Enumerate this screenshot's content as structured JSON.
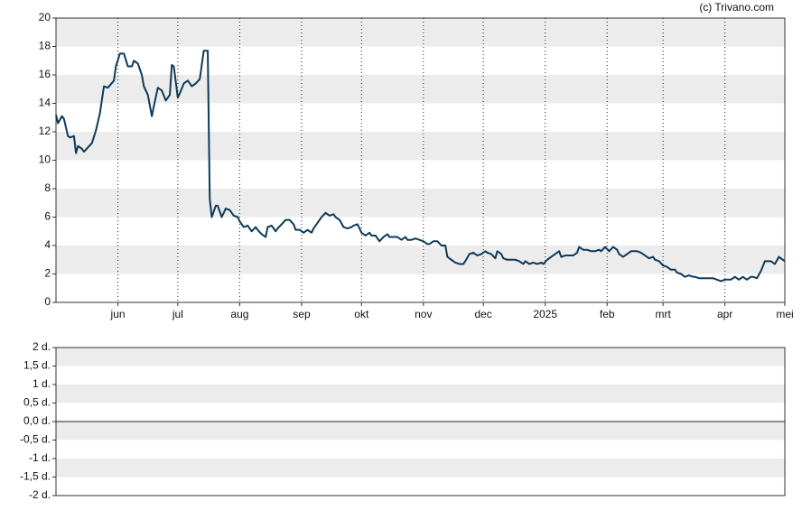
{
  "watermark": "(c) Trivano.com",
  "chart_data": [
    {
      "type": "line",
      "x": [
        0,
        1,
        3,
        4,
        6,
        7,
        9,
        10,
        11,
        13,
        14,
        16,
        18,
        20,
        22,
        24,
        26,
        29,
        30,
        32,
        34,
        36,
        38,
        39,
        41,
        43,
        44,
        46,
        48,
        49,
        51,
        53,
        55,
        57,
        58,
        59,
        61,
        62,
        64,
        66,
        68,
        70,
        72,
        74,
        76,
        77,
        78,
        80,
        81,
        83,
        85,
        87,
        89,
        91,
        92,
        94,
        96,
        98,
        100,
        101,
        103,
        105,
        106,
        108,
        110,
        111,
        113,
        115,
        117,
        119,
        120,
        122,
        124,
        126,
        128,
        129,
        131,
        133,
        135,
        137,
        139,
        140,
        142,
        144,
        146,
        148,
        149,
        151,
        153,
        155,
        157,
        158,
        160,
        162,
        164,
        166,
        167,
        169,
        171,
        173,
        175,
        176,
        178,
        180,
        182,
        184,
        186,
        187,
        189,
        191,
        193,
        195,
        196,
        198,
        200,
        202,
        204,
        205,
        207,
        209,
        211,
        213,
        215,
        216,
        218,
        220,
        221,
        223,
        224,
        226,
        228,
        230,
        232,
        234,
        235,
        237,
        239,
        241,
        243,
        244,
        246,
        248,
        250,
        252,
        253,
        255,
        257,
        259,
        261,
        262,
        264,
        266,
        268,
        270,
        272,
        273,
        275,
        277,
        279,
        281,
        282,
        284,
        286,
        288,
        290,
        291,
        293,
        295,
        297,
        299,
        300,
        302,
        304,
        306,
        308,
        310,
        311,
        313,
        315,
        317,
        319,
        320,
        322,
        324,
        326,
        328,
        329,
        331,
        333,
        335,
        337,
        338,
        340,
        342,
        344,
        346,
        348,
        349,
        351,
        353,
        355,
        357,
        358,
        360,
        362,
        364,
        365
      ],
      "series": [
        {
          "color": "#0e3a5a",
          "values": [
            13.2,
            12.6,
            13.1,
            12.9,
            11.7,
            11.6,
            11.7,
            10.5,
            11.0,
            10.8,
            10.6,
            10.9,
            11.2,
            12.1,
            13.3,
            15.2,
            15.1,
            15.6,
            16.6,
            17.5,
            17.5,
            16.6,
            16.6,
            17.0,
            16.8,
            16.0,
            15.2,
            14.6,
            13.1,
            13.8,
            15.1,
            14.9,
            14.2,
            14.6,
            16.7,
            16.6,
            14.4,
            14.7,
            15.4,
            15.6,
            15.2,
            15.4,
            15.7,
            17.7,
            17.7,
            7.3,
            6.0,
            6.8,
            6.8,
            6.0,
            6.6,
            6.5,
            6.1,
            6.0,
            5.7,
            5.3,
            5.4,
            5.0,
            5.3,
            5.1,
            4.8,
            4.6,
            5.3,
            5.4,
            5.0,
            5.2,
            5.5,
            5.8,
            5.8,
            5.5,
            5.1,
            5.1,
            4.9,
            5.1,
            4.9,
            5.2,
            5.6,
            6.0,
            6.3,
            6.1,
            6.2,
            6.0,
            5.8,
            5.3,
            5.2,
            5.3,
            5.4,
            5.5,
            4.9,
            4.7,
            4.9,
            4.7,
            4.7,
            4.3,
            4.6,
            4.8,
            4.6,
            4.6,
            4.6,
            4.4,
            4.6,
            4.4,
            4.4,
            4.5,
            4.4,
            4.3,
            4.1,
            4.1,
            4.3,
            4.3,
            4.0,
            4.0,
            3.2,
            3.0,
            2.8,
            2.7,
            2.7,
            2.9,
            3.4,
            3.5,
            3.3,
            3.4,
            3.6,
            3.5,
            3.4,
            3.1,
            3.6,
            3.4,
            3.1,
            3.0,
            3.0,
            3.0,
            2.9,
            2.7,
            2.9,
            2.7,
            2.8,
            2.7,
            2.8,
            2.7,
            3.0,
            3.2,
            3.4,
            3.6,
            3.2,
            3.3,
            3.3,
            3.3,
            3.5,
            3.9,
            3.7,
            3.7,
            3.6,
            3.6,
            3.7,
            3.6,
            3.9,
            3.6,
            3.9,
            3.7,
            3.4,
            3.2,
            3.4,
            3.6,
            3.6,
            3.6,
            3.5,
            3.3,
            3.1,
            3.2,
            3.0,
            2.9,
            2.6,
            2.5,
            2.3,
            2.3,
            2.1,
            2.0,
            1.8,
            1.9,
            1.8,
            1.8,
            1.7,
            1.7,
            1.7,
            1.7,
            1.7,
            1.6,
            1.5,
            1.6,
            1.6,
            1.6,
            1.8,
            1.6,
            1.8,
            1.6,
            1.8,
            1.8,
            1.7,
            2.2,
            2.9,
            2.9,
            2.9,
            2.7,
            3.2,
            3.0,
            2.9
          ]
        }
      ],
      "xlim": [
        0,
        365
      ],
      "xticks": [
        {
          "value": 31,
          "label": "jun"
        },
        {
          "value": 61,
          "label": "jul"
        },
        {
          "value": 92,
          "label": "aug"
        },
        {
          "value": 123,
          "label": "sep"
        },
        {
          "value": 153,
          "label": "okt"
        },
        {
          "value": 184,
          "label": "nov"
        },
        {
          "value": 214,
          "label": "dec"
        },
        {
          "value": 245,
          "label": "2025"
        },
        {
          "value": 276,
          "label": "feb"
        },
        {
          "value": 304,
          "label": "mrt"
        },
        {
          "value": 335,
          "label": "apr"
        },
        {
          "value": 365,
          "label": "mei"
        }
      ],
      "ylim": [
        0,
        20
      ],
      "yticks": [
        0,
        2,
        4,
        6,
        8,
        10,
        12,
        14,
        16,
        18,
        20
      ],
      "xgrid": true,
      "bands": true
    },
    {
      "type": "line",
      "series": [],
      "ylim": [
        -2,
        2
      ],
      "yticks": [
        {
          "value": 2,
          "label": "2 d."
        },
        {
          "value": 1.5,
          "label": "1,5 d."
        },
        {
          "value": 1,
          "label": "1 d."
        },
        {
          "value": 0.5,
          "label": "0,5 d."
        },
        {
          "value": 0,
          "label": "0,0 d."
        },
        {
          "value": -0.5,
          "label": "-0,5 d."
        },
        {
          "value": -1,
          "label": "-1 d."
        },
        {
          "value": -1.5,
          "label": "-1,5 d."
        },
        {
          "value": -2,
          "label": "-2 d."
        }
      ],
      "bands": true,
      "zero_line": true
    }
  ]
}
